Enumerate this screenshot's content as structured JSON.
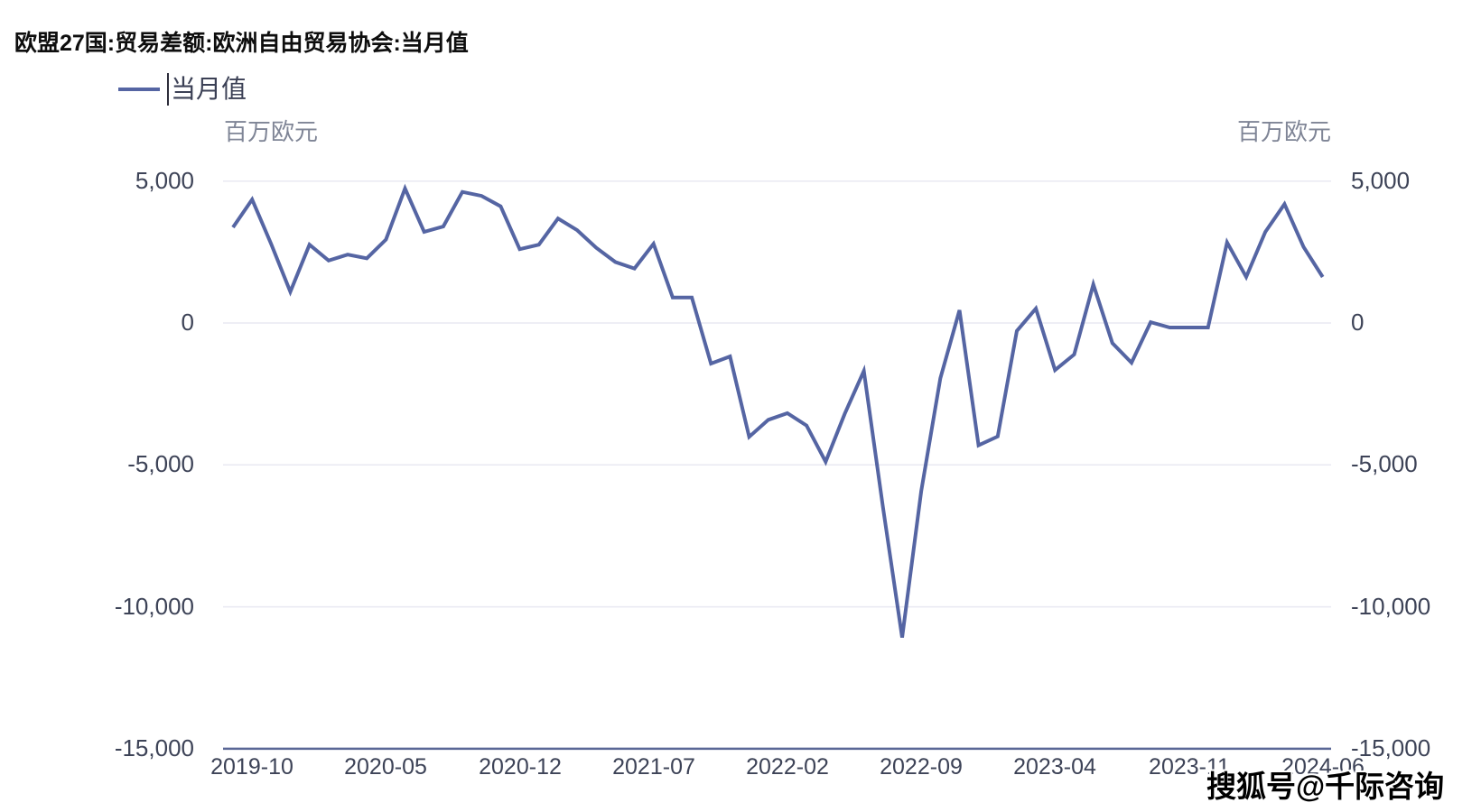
{
  "page": {
    "title": "欧盟27国:贸易差额:欧洲自由贸易协会:当月值"
  },
  "legend": {
    "label": "当月值"
  },
  "axes": {
    "unit_left": "百万欧元",
    "unit_right": "百万欧元"
  },
  "watermark": {
    "text": "搜狐号@千际咨询"
  },
  "colors": {
    "line": "#5565a3",
    "grid": "#e9e9f2",
    "axis": "#5a6796",
    "tick_label": "#3d4357",
    "unit_label": "#7f8596",
    "title": "#0e0e0e",
    "watermark": "#000000"
  },
  "chart_data": {
    "type": "line",
    "title": "欧盟27国:贸易差额:欧洲自由贸易协会:当月值",
    "series_name": "当月值",
    "ylabel": "百万欧元",
    "xlabel": "",
    "grid": "horizontal",
    "legend_position": "top-left",
    "ylim": [
      -15000,
      5000
    ],
    "x": [
      "2019-09",
      "2019-10",
      "2019-11",
      "2019-12",
      "2020-01",
      "2020-02",
      "2020-03",
      "2020-04",
      "2020-05",
      "2020-06",
      "2020-07",
      "2020-08",
      "2020-09",
      "2020-10",
      "2020-11",
      "2020-12",
      "2021-01",
      "2021-02",
      "2021-03",
      "2021-04",
      "2021-05",
      "2021-06",
      "2021-07",
      "2021-08",
      "2021-09",
      "2021-10",
      "2021-11",
      "2021-12",
      "2022-01",
      "2022-02",
      "2022-03",
      "2022-04",
      "2022-05",
      "2022-06",
      "2022-07",
      "2022-08",
      "2022-09",
      "2022-10",
      "2022-11",
      "2022-12",
      "2023-01",
      "2023-02",
      "2023-03",
      "2023-04",
      "2023-05",
      "2023-06",
      "2023-07",
      "2023-08",
      "2023-09",
      "2023-10",
      "2023-11",
      "2023-12",
      "2024-01",
      "2024-02",
      "2024-03",
      "2024-04",
      "2024-05",
      "2024-06"
    ],
    "values": [
      3370,
      4350,
      2780,
      1100,
      2760,
      2200,
      2410,
      2280,
      2940,
      4740,
      3210,
      3400,
      4620,
      4480,
      4110,
      2600,
      2760,
      3680,
      3270,
      2650,
      2150,
      1920,
      2790,
      900,
      900,
      -1430,
      -1180,
      -4010,
      -3410,
      -3180,
      -3610,
      -4890,
      -3200,
      -1690,
      -6500,
      -11080,
      -5930,
      -1950,
      450,
      -4310,
      -4000,
      -280,
      510,
      -1660,
      -1110,
      1360,
      -710,
      -1400,
      30,
      -160,
      -160,
      -160,
      2840,
      1620,
      3210,
      4190,
      2680,
      1620
    ],
    "xtick_indices": [
      1,
      8,
      15,
      22,
      29,
      36,
      43,
      50,
      57
    ],
    "xtick_labels": [
      "2019-10",
      "2020-05",
      "2020-12",
      "2021-07",
      "2022-02",
      "2022-09",
      "2023-04",
      "2023-11",
      "2024-06"
    ],
    "yticks": [
      5000,
      0,
      -5000,
      -10000,
      -15000
    ],
    "ytick_labels": [
      "5,000",
      "0",
      "-5,000",
      "-10,000",
      "-15,000"
    ]
  }
}
